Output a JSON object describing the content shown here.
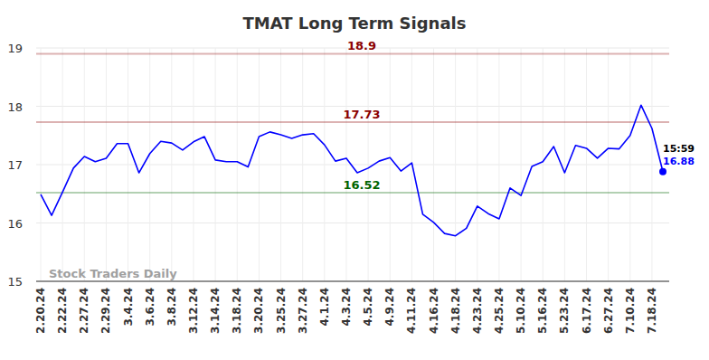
{
  "chart_data": {
    "type": "line",
    "title": "TMAT Long Term Signals",
    "categories": [
      "2.20.24",
      null,
      "2.22.24",
      null,
      "2.27.24",
      null,
      "2.29.24",
      null,
      "3.4.24",
      null,
      "3.6.24",
      null,
      "3.8.24",
      null,
      "3.12.24",
      null,
      "3.14.24",
      null,
      "3.18.24",
      null,
      "3.20.24",
      null,
      "3.25.24",
      null,
      "3.27.24",
      null,
      "4.1.24",
      null,
      "4.3.24",
      null,
      "4.5.24",
      null,
      "4.9.24",
      null,
      "4.11.24",
      null,
      "4.16.24",
      null,
      "4.18.24",
      null,
      "4.23.24",
      null,
      "4.25.24",
      null,
      "5.10.24",
      null,
      "5.16.24",
      null,
      "5.23.24",
      null,
      "6.17.24",
      null,
      "6.27.24",
      null,
      "7.10.24",
      null,
      "7.18.24",
      null
    ],
    "values": [
      16.49,
      16.13,
      16.53,
      16.94,
      17.14,
      17.05,
      17.11,
      17.36,
      17.36,
      16.86,
      17.19,
      17.4,
      17.37,
      17.25,
      17.39,
      17.48,
      17.08,
      17.05,
      17.05,
      16.96,
      17.48,
      17.56,
      17.51,
      17.45,
      17.51,
      17.53,
      17.34,
      17.06,
      17.11,
      16.86,
      16.94,
      17.06,
      17.12,
      16.89,
      17.03,
      16.15,
      16.01,
      15.82,
      15.78,
      15.91,
      16.29,
      16.16,
      16.07,
      16.6,
      16.47,
      16.97,
      17.05,
      17.31,
      16.86,
      17.33,
      17.28,
      17.11,
      17.28,
      17.27,
      17.5,
      18.02,
      17.62,
      16.88
    ],
    "color": "#0000ff",
    "ylim": [
      15,
      19
    ],
    "yticks": [
      15,
      16,
      17,
      18,
      19
    ],
    "grid": true,
    "reference_lines": [
      {
        "value": 18.9,
        "color": "#8b0000"
      },
      {
        "value": 17.73,
        "color": "#8b0000"
      },
      {
        "value": 16.52,
        "color": "#006400"
      }
    ],
    "last_point_time": "15:59",
    "watermark": "Stock Traders Daily"
  }
}
